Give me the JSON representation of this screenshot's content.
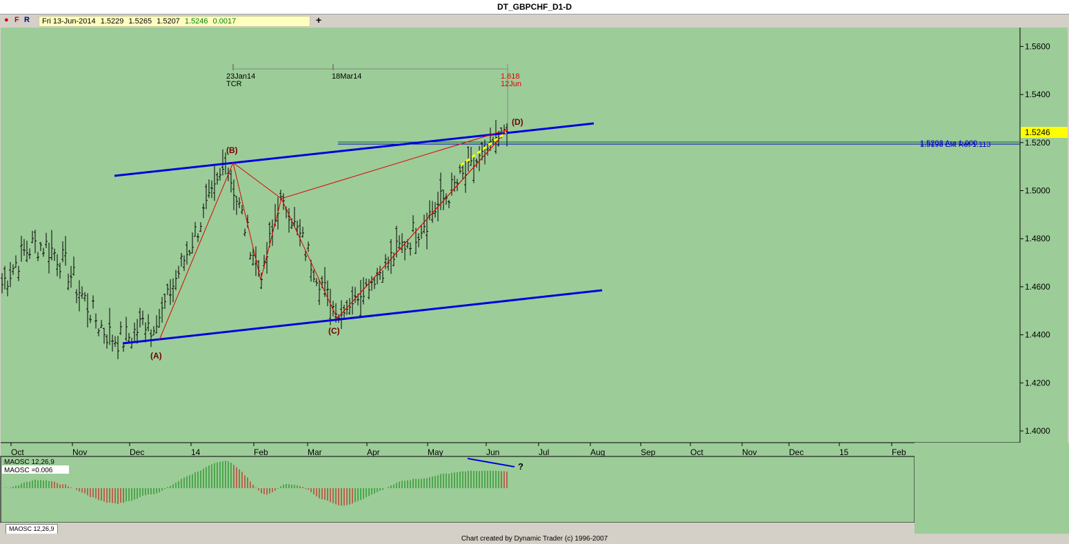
{
  "window": {
    "title": "DT_GBPCHF_D1-D"
  },
  "quote": {
    "date": "Fri 13-Jun-2014",
    "open": "1.5229",
    "high": "1.5265",
    "low": "1.5207",
    "close": "1.5246",
    "change": "0.0017"
  },
  "toolbar": {
    "f_label": "F",
    "r_label": "R",
    "add_label": "+"
  },
  "chart_data": {
    "type": "ohlc",
    "price_axis": {
      "ticks": [
        "1.5600",
        "1.5400",
        "1.5246",
        "1.5200",
        "1.5000",
        "1.4800",
        "1.4600",
        "1.4400",
        "1.4200",
        "1.4000"
      ],
      "ylim": [
        1.395,
        1.565
      ],
      "current_price": "1.5246"
    },
    "time_axis": {
      "ticks": [
        "Oct",
        "Nov",
        "Dec",
        "14",
        "Feb",
        "Mar",
        "Apr",
        "May",
        "Jun",
        "Jul",
        "Aug",
        "Sep",
        "Oct",
        "Nov",
        "Dec",
        "15",
        "Feb"
      ]
    },
    "wave_labels": [
      "(A)",
      "(B)",
      "(C)",
      "(D)"
    ],
    "timing_labels": {
      "tcr_date": "23Jan14",
      "tcr_label": "TCR",
      "mid_date": "18Mar14",
      "ratio": "1.618",
      "target_date": "12Jun"
    },
    "levels": {
      "level1": "1.5203 Arc 1.000",
      "level2": "1.5196 Ext Ret 1.113"
    },
    "pivots": [
      {
        "label": "(A)",
        "price": 1.4395
      },
      {
        "label": "(B)",
        "price": 1.5115
      },
      {
        "label": "",
        "price": 1.463
      },
      {
        "label": "",
        "price": 1.4975
      },
      {
        "label": "(C)",
        "price": 1.447
      },
      {
        "label": "(D)",
        "price": 1.5265
      }
    ],
    "indicator": {
      "name": "MAOSC 12,26,9",
      "label": "MAOSC 12,26,9",
      "value_label": "MAOSC =0.006",
      "annotation": "?"
    }
  },
  "tabs": [
    {
      "label": "MAOSC 12,26,9"
    }
  ],
  "footer": {
    "text": "Chart created by Dynamic Trader  (c) 1996-2007"
  },
  "colors": {
    "chart_bg": "#9ccc98",
    "channel": "#0000dd",
    "wave": "#dd0000",
    "label": "#700000",
    "highlight": "#ffff00"
  }
}
